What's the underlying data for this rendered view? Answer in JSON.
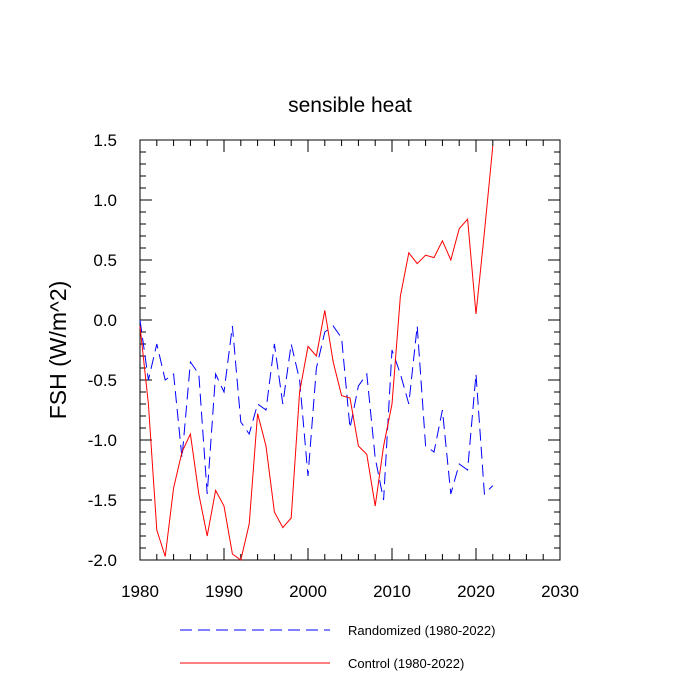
{
  "chart_data": {
    "type": "line",
    "title": "sensible heat",
    "xlabel": "",
    "ylabel": "FSH  (W/m^2)",
    "xlim": [
      1980,
      2030
    ],
    "ylim": [
      -2.0,
      1.5
    ],
    "xticks": [
      1980,
      1990,
      2000,
      2010,
      2020,
      2030
    ],
    "yticks": [
      -2.0,
      -1.5,
      -1.0,
      -0.5,
      0.0,
      0.5,
      1.0,
      1.5
    ],
    "ytick_labels": [
      "-2.0",
      "-1.5",
      "-1.0",
      "-0.5",
      "0.0",
      "0.5",
      "1.0",
      "1.5"
    ],
    "grid": false,
    "legend_position": "bottom",
    "series": [
      {
        "name": "Randomized (1980-2022)",
        "color": "#0000ff",
        "dash": "dashed",
        "x": [
          1980,
          1981,
          1982,
          1983,
          1984,
          1985,
          1986,
          1987,
          1988,
          1989,
          1990,
          1991,
          1992,
          1993,
          1994,
          1995,
          1996,
          1997,
          1998,
          1999,
          2000,
          2001,
          2002,
          2003,
          2004,
          2005,
          2006,
          2007,
          2008,
          2009,
          2010,
          2011,
          2012,
          2013,
          2014,
          2015,
          2016,
          2017,
          2018,
          2019,
          2020,
          2021,
          2022
        ],
        "y": [
          0.0,
          -0.5,
          -0.2,
          -0.5,
          -0.45,
          -1.15,
          -0.35,
          -0.45,
          -1.45,
          -0.45,
          -0.6,
          -0.05,
          -0.85,
          -0.95,
          -0.7,
          -0.75,
          -0.2,
          -0.7,
          -0.2,
          -0.5,
          -1.3,
          -0.4,
          -0.1,
          -0.05,
          -0.15,
          -0.9,
          -0.55,
          -0.45,
          -1.15,
          -1.5,
          -0.25,
          -0.45,
          -0.7,
          -0.05,
          -1.05,
          -1.1,
          -0.75,
          -1.45,
          -1.2,
          -1.25,
          -0.45,
          -1.45,
          -1.38
        ]
      },
      {
        "name": "Control (1980-2022)",
        "color": "#ff0000",
        "dash": "solid",
        "x": [
          1980,
          1981,
          1982,
          1983,
          1984,
          1985,
          1986,
          1987,
          1988,
          1989,
          1990,
          1991,
          1992,
          1993,
          1994,
          1995,
          1996,
          1997,
          1998,
          1999,
          2000,
          2001,
          2002,
          2003,
          2004,
          2005,
          2006,
          2007,
          2008,
          2009,
          2010,
          2011,
          2012,
          2013,
          2014,
          2015,
          2016,
          2017,
          2018,
          2019,
          2020,
          2021,
          2022
        ],
        "y": [
          -0.05,
          -0.7,
          -1.75,
          -1.97,
          -1.4,
          -1.1,
          -0.95,
          -1.45,
          -1.8,
          -1.42,
          -1.55,
          -1.95,
          -2.0,
          -1.7,
          -0.78,
          -1.05,
          -1.6,
          -1.73,
          -1.65,
          -0.6,
          -0.22,
          -0.3,
          0.08,
          -0.35,
          -0.63,
          -0.65,
          -1.05,
          -1.12,
          -1.55,
          -1.05,
          -0.7,
          0.2,
          0.56,
          0.47,
          0.54,
          0.52,
          0.66,
          0.5,
          0.76,
          0.84,
          0.05,
          0.73,
          1.45
        ]
      }
    ]
  }
}
